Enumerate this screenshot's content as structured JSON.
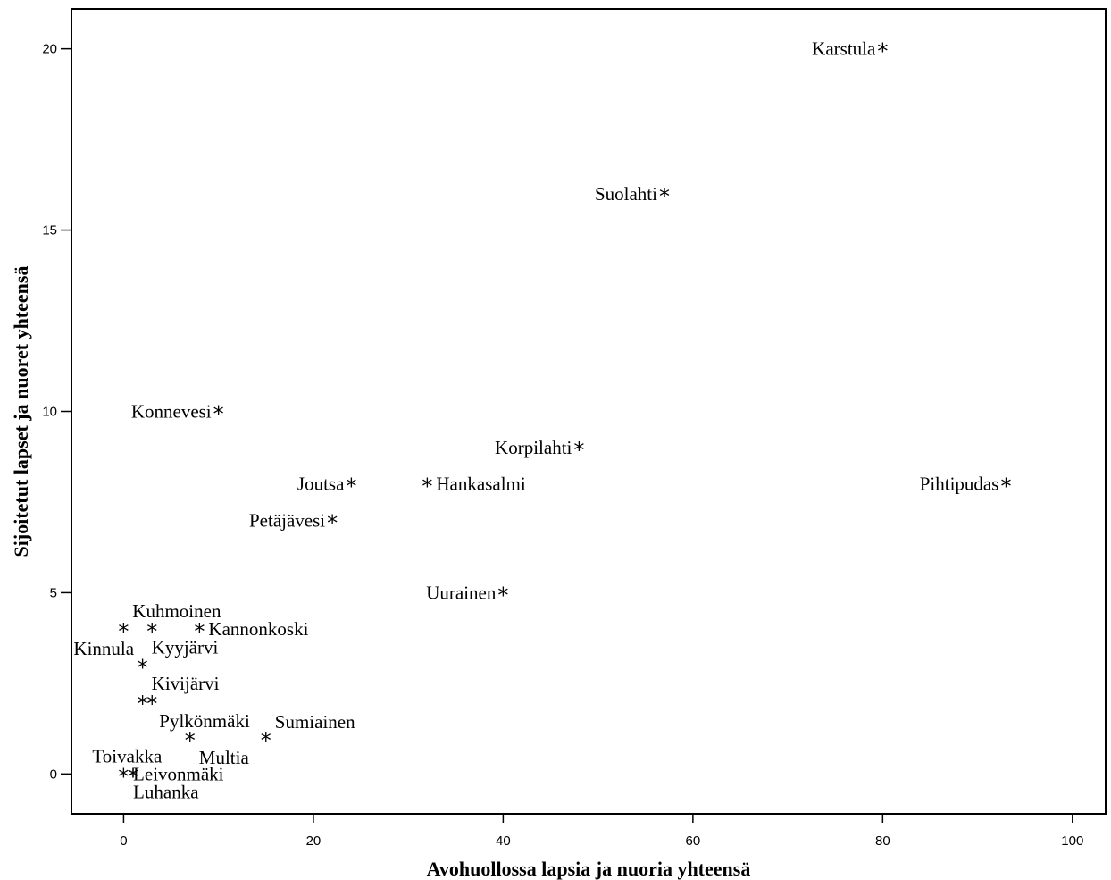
{
  "chart_data": {
    "type": "scatter",
    "title": "",
    "xlabel": "Avohuollossa lapsia ja nuoria yhteensä",
    "ylabel": "Sijoitetut lapset ja nuoret yhteensä",
    "xlim": [
      -5.5,
      103.5
    ],
    "ylim": [
      -1.1,
      21.1
    ],
    "xticks": [
      0,
      20,
      40,
      60,
      80,
      100
    ],
    "yticks": [
      0,
      5,
      10,
      15,
      20
    ],
    "marker": "*",
    "grid": false,
    "legend": "none",
    "points": [
      {
        "label": "Karstula",
        "x": 80,
        "y": 20
      },
      {
        "label": "Suolahti",
        "x": 57,
        "y": 16
      },
      {
        "label": "Konnevesi",
        "x": 10,
        "y": 10
      },
      {
        "label": "Korpilahti",
        "x": 48,
        "y": 9
      },
      {
        "label": "Joutsa",
        "x": 24,
        "y": 8
      },
      {
        "label": "Hankasalmi",
        "x": 32,
        "y": 8
      },
      {
        "label": "Pihtipudas",
        "x": 93,
        "y": 8
      },
      {
        "label": "Petäjävesi",
        "x": 22,
        "y": 7
      },
      {
        "label": "Uurainen",
        "x": 40,
        "y": 5
      },
      {
        "label": "Kinnula",
        "x": 0,
        "y": 4
      },
      {
        "label": "Kuhmoinen",
        "x": 3,
        "y": 4
      },
      {
        "label": "Kannonkoski",
        "x": 8,
        "y": 4
      },
      {
        "label": "Kyyjärvi",
        "x": 2,
        "y": 3
      },
      {
        "label": "Kivijärvi",
        "x": 2,
        "y": 2
      },
      {
        "label": "Pylkönmäki",
        "x": 3,
        "y": 2
      },
      {
        "label": "Multia",
        "x": 7,
        "y": 1
      },
      {
        "label": "Sumiainen",
        "x": 15,
        "y": 1
      },
      {
        "label": "Toivakka",
        "x": 0,
        "y": 0
      },
      {
        "label": "Luhanka",
        "x": 1,
        "y": 0
      },
      {
        "label": "Leivonmäki",
        "x": 1,
        "y": 0
      }
    ]
  }
}
